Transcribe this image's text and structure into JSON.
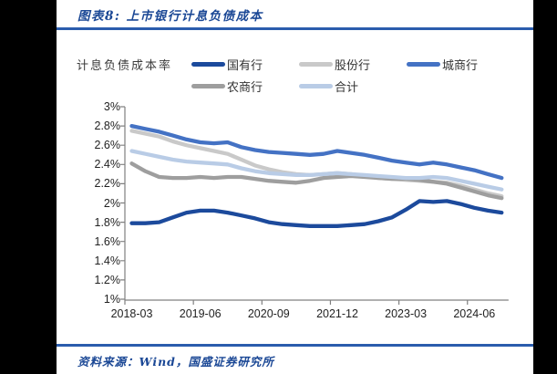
{
  "header": {
    "title": "图表8: 上市银行计息负债成本"
  },
  "footer": {
    "source": "资料来源：Wind，国盛证券研究所"
  },
  "colors": {
    "page_background": "#000000",
    "card_background": "#ffffff",
    "title_blue": "#1a4795",
    "rule_blue": "#2b5cad",
    "axis_gray": "#808080",
    "tick_text": "#222222"
  },
  "chart_data": {
    "type": "line",
    "title": "图表8: 上市银行计息负债成本",
    "ylabel": "计息负债成本率",
    "ylim": [
      1,
      3
    ],
    "grid": false,
    "legend_position": "top",
    "y_tick_labels": [
      "3%",
      "2.8%",
      "2.6%",
      "2.4%",
      "2.2%",
      "2%",
      "1.8%",
      "1.6%",
      "1.4%",
      "1.2%",
      "1%"
    ],
    "x_tick_labels": [
      "2018-03",
      "2019-06",
      "2020-09",
      "2021-12",
      "2023-03",
      "2024-06"
    ],
    "categories": [
      "2018-03",
      "2018-06",
      "2018-09",
      "2018-12",
      "2019-03",
      "2019-06",
      "2019-09",
      "2019-12",
      "2020-03",
      "2020-06",
      "2020-09",
      "2020-12",
      "2021-03",
      "2021-06",
      "2021-09",
      "2021-12",
      "2022-03",
      "2022-06",
      "2022-09",
      "2022-12",
      "2023-03",
      "2023-06",
      "2023-09",
      "2023-12",
      "2024-03",
      "2024-06",
      "2024-09",
      "2024-12"
    ],
    "series": [
      {
        "name": "国有行",
        "color": "#1c4a9c",
        "values": [
          1.79,
          1.79,
          1.8,
          1.85,
          1.9,
          1.92,
          1.92,
          1.9,
          1.87,
          1.84,
          1.8,
          1.78,
          1.77,
          1.76,
          1.76,
          1.76,
          1.77,
          1.78,
          1.81,
          1.85,
          1.93,
          2.02,
          2.01,
          2.02,
          1.99,
          1.95,
          1.92,
          1.9
        ]
      },
      {
        "name": "股份行",
        "color": "#c9c9c9",
        "values": [
          2.75,
          2.72,
          2.69,
          2.64,
          2.6,
          2.57,
          2.54,
          2.51,
          2.45,
          2.39,
          2.35,
          2.32,
          2.3,
          2.29,
          2.3,
          2.31,
          2.3,
          2.28,
          2.26,
          2.25,
          2.24,
          2.23,
          2.22,
          2.21,
          2.18,
          2.14,
          2.1,
          2.07
        ]
      },
      {
        "name": "城商行",
        "color": "#4472c4",
        "values": [
          2.8,
          2.77,
          2.74,
          2.7,
          2.66,
          2.63,
          2.62,
          2.63,
          2.58,
          2.55,
          2.53,
          2.52,
          2.51,
          2.5,
          2.51,
          2.54,
          2.52,
          2.5,
          2.47,
          2.44,
          2.42,
          2.4,
          2.42,
          2.4,
          2.37,
          2.34,
          2.3,
          2.26
        ]
      },
      {
        "name": "农商行",
        "color": "#9e9e9e",
        "values": [
          2.41,
          2.33,
          2.27,
          2.26,
          2.26,
          2.27,
          2.26,
          2.27,
          2.27,
          2.25,
          2.23,
          2.22,
          2.21,
          2.23,
          2.26,
          2.27,
          2.28,
          2.27,
          2.26,
          2.25,
          2.25,
          2.24,
          2.22,
          2.2,
          2.16,
          2.12,
          2.08,
          2.05
        ]
      },
      {
        "name": "合计",
        "color": "#b9cce6",
        "values": [
          2.54,
          2.51,
          2.48,
          2.45,
          2.43,
          2.42,
          2.41,
          2.4,
          2.36,
          2.33,
          2.31,
          2.3,
          2.29,
          2.29,
          2.3,
          2.31,
          2.3,
          2.29,
          2.28,
          2.27,
          2.26,
          2.26,
          2.27,
          2.26,
          2.23,
          2.2,
          2.17,
          2.14
        ]
      }
    ]
  }
}
